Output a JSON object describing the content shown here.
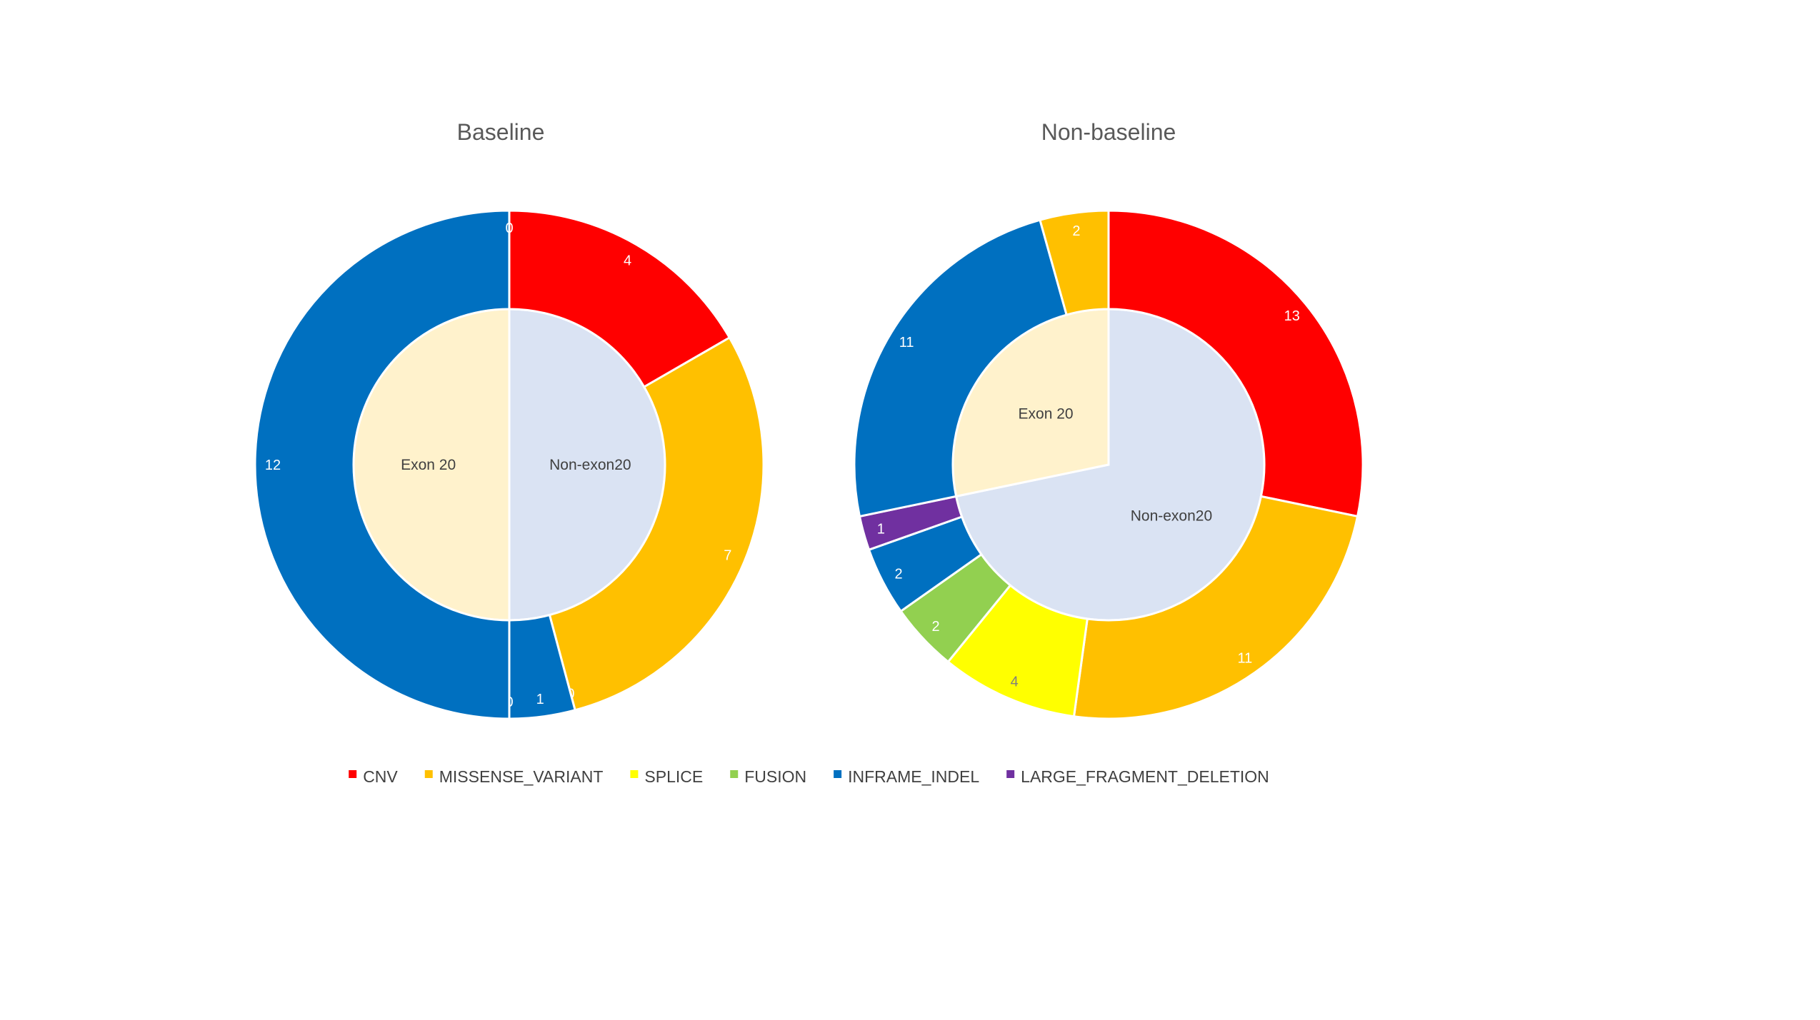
{
  "legend": {
    "placement": "bottom",
    "entries": [
      {
        "key": "CNV",
        "label": "CNV",
        "color": "#FF0000"
      },
      {
        "key": "MISSENSE_VARIANT",
        "label": "MISSENSE_VARIANT",
        "color": "#FFC000"
      },
      {
        "key": "SPLICE",
        "label": "SPLICE",
        "color": "#FFFF00"
      },
      {
        "key": "FUSION",
        "label": "FUSION",
        "color": "#92D050"
      },
      {
        "key": "INFRAME_INDEL",
        "label": "INFRAME_INDEL",
        "color": "#0070C0"
      },
      {
        "key": "LARGE_FRAGMENT_DELETION",
        "label": "LARGE_FRAGMENT_DELETION",
        "color": "#7030A0"
      }
    ]
  },
  "chart_data": [
    {
      "type": "pie",
      "subtype": "nested-donut",
      "title": "Baseline",
      "inner_ring": [
        {
          "label": "Non-exon20",
          "value": 12,
          "color": "#DAE3F3"
        },
        {
          "label": "Exon 20",
          "value": 12,
          "color": "#FFF2CC"
        }
      ],
      "outer_ring": [
        {
          "category": "CNV",
          "value": 4,
          "label": "4"
        },
        {
          "category": "MISSENSE_VARIANT",
          "value": 7,
          "label": "7"
        },
        {
          "category": "SPLICE",
          "value": 0,
          "label": "0"
        },
        {
          "category": "FUSION",
          "value": 0,
          "label": "0"
        },
        {
          "category": "INFRAME_INDEL",
          "value": 1,
          "label": "1"
        },
        {
          "category": "LARGE_FRAGMENT_DELETION",
          "value": 0,
          "label": "0"
        },
        {
          "category": "INFRAME_INDEL",
          "value": 12,
          "label": "12"
        },
        {
          "category": "MISSENSE_VARIANT",
          "value": 0,
          "label": "0"
        }
      ]
    },
    {
      "type": "pie",
      "subtype": "nested-donut",
      "title": "Non-baseline",
      "inner_ring": [
        {
          "label": "Non-exon20",
          "value": 33,
          "color": "#DAE3F3"
        },
        {
          "label": "Exon 20",
          "value": 13,
          "color": "#FFF2CC"
        }
      ],
      "outer_ring": [
        {
          "category": "CNV",
          "value": 13,
          "label": "13"
        },
        {
          "category": "MISSENSE_VARIANT",
          "value": 11,
          "label": "11"
        },
        {
          "category": "SPLICE",
          "value": 4,
          "label": "4"
        },
        {
          "category": "FUSION",
          "value": 2,
          "label": "2"
        },
        {
          "category": "INFRAME_INDEL",
          "value": 2,
          "label": "2"
        },
        {
          "category": "LARGE_FRAGMENT_DELETION",
          "value": 1,
          "label": "1"
        },
        {
          "category": "INFRAME_INDEL",
          "value": 11,
          "label": "11"
        },
        {
          "category": "MISSENSE_VARIANT",
          "value": 2,
          "label": "2"
        }
      ]
    }
  ]
}
